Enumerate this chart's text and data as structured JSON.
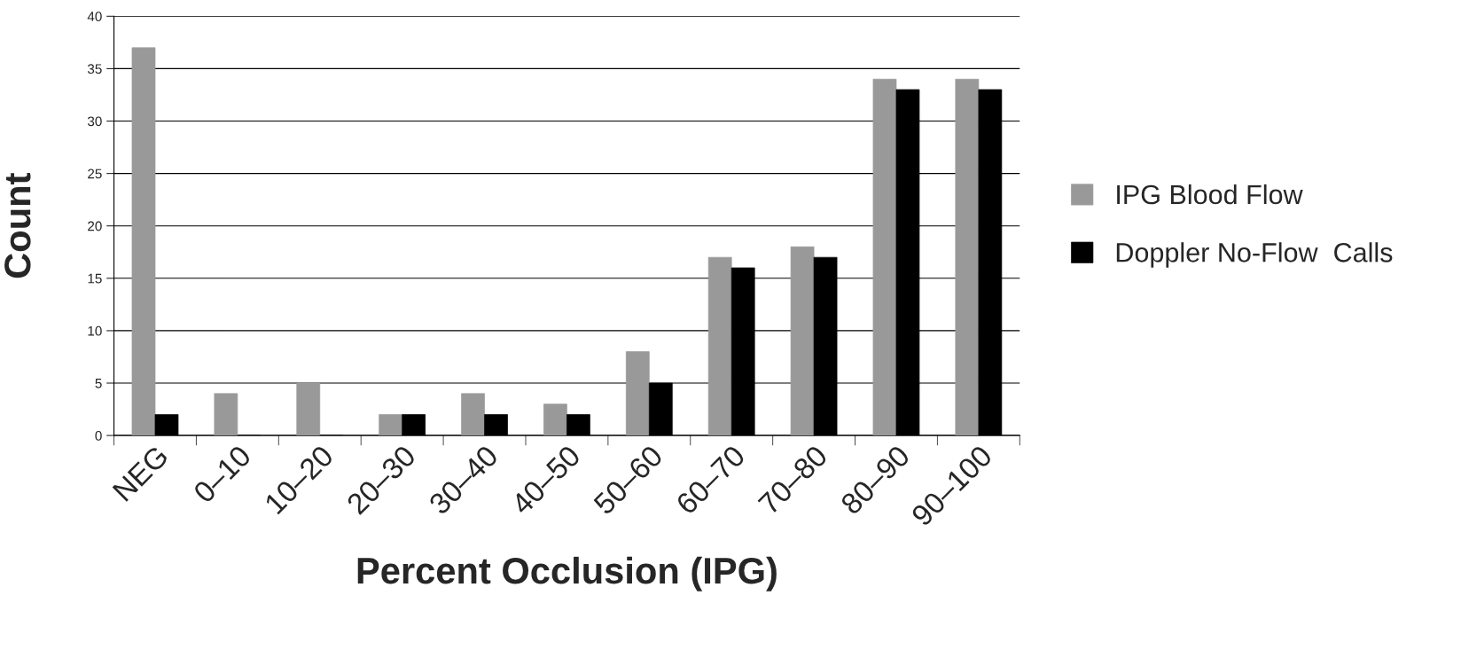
{
  "chart_data": {
    "type": "bar",
    "xlabel": "Percent Occlusion (IPG)",
    "ylabel": "Count",
    "categories": [
      "NEG",
      "0–10",
      "10–20",
      "20–30",
      "30–40",
      "40–50",
      "50–60",
      "60–70",
      "70–80",
      "80–90",
      "90–100"
    ],
    "series": [
      {
        "name": "IPG Blood Flow",
        "color": "#999999",
        "values": [
          37,
          4,
          5,
          2,
          4,
          3,
          8,
          17,
          18,
          34,
          34
        ]
      },
      {
        "name": "Doppler No-Flow  Calls",
        "color": "#000000",
        "values": [
          2,
          0,
          0,
          2,
          2,
          2,
          5,
          16,
          17,
          33,
          33
        ]
      }
    ],
    "ylim": [
      0,
      40
    ],
    "yticks": [
      0,
      5,
      10,
      15,
      20,
      25,
      30,
      35,
      40
    ],
    "grid": "y",
    "legend": "right"
  }
}
